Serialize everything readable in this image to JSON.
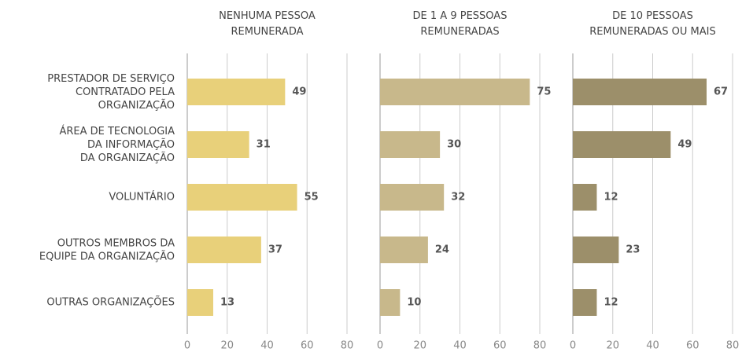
{
  "chart_data": {
    "type": "bar",
    "orientation": "horizontal",
    "categories": [
      "PRESTADOR DE SERVIÇO\nCONTRATADO PELA\nORGANIZAÇÃO",
      "ÁREA DE TECNOLOGIA\nDA INFORMAÇÃO\nDA ORGANIZAÇÃO",
      "VOLUNTÁRIO",
      "OUTROS MEMBROS DA\nEQUIPE DA ORGANIZAÇÃO",
      "OUTRAS ORGANIZAÇÕES"
    ],
    "series": [
      {
        "name": "NENHUMA PESSOA\nREMUNERADA",
        "color": "#e8d07a",
        "values": [
          49,
          31,
          55,
          37,
          13
        ]
      },
      {
        "name": "DE 1 A 9 PESSOAS\nREMUNERADAS",
        "color": "#c8b88b",
        "values": [
          75,
          30,
          32,
          24,
          10
        ]
      },
      {
        "name": "DE 10 PESSOAS\nREMUNERADAS OU MAIS",
        "color": "#9c8f6a",
        "values": [
          67,
          49,
          12,
          23,
          12
        ]
      }
    ],
    "xlim": [
      0,
      80
    ],
    "xticks": [
      0,
      20,
      40,
      60,
      80
    ],
    "grid": true
  }
}
